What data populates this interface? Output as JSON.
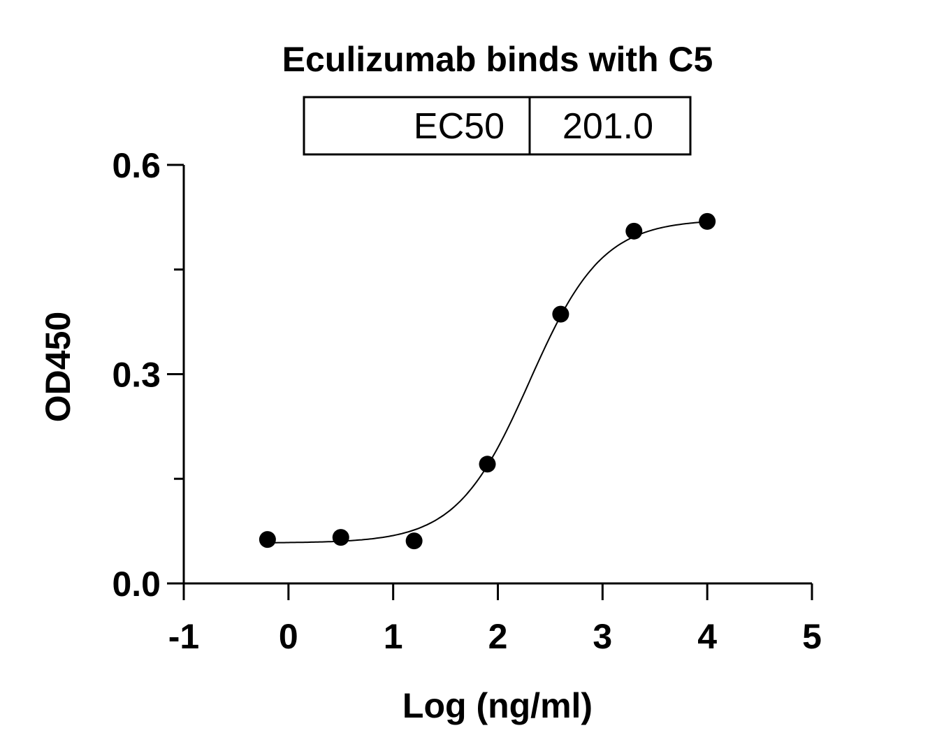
{
  "chart_data": {
    "type": "scatter",
    "title": "Eculizumab binds with C5",
    "xlabel": "Log (ng/ml)",
    "ylabel": "OD450",
    "xlim": [
      -1,
      5
    ],
    "ylim": [
      0,
      0.6
    ],
    "x_ticks": [
      "-1",
      "0",
      "1",
      "2",
      "3",
      "4",
      "5"
    ],
    "y_ticks": [
      "0.0",
      "0.3",
      "0.6"
    ],
    "y_minor_ticks": [
      0.15,
      0.45
    ],
    "grid": false,
    "fit": "sigmoidal curve",
    "points": [
      {
        "x": -0.2,
        "y": 0.063
      },
      {
        "x": 0.5,
        "y": 0.066
      },
      {
        "x": 1.2,
        "y": 0.061
      },
      {
        "x": 1.9,
        "y": 0.171
      },
      {
        "x": 2.6,
        "y": 0.386
      },
      {
        "x": 3.3,
        "y": 0.505
      },
      {
        "x": 4.0,
        "y": 0.519
      }
    ],
    "table": {
      "label": "EC50",
      "value": "201.0"
    },
    "color": "#000000"
  }
}
